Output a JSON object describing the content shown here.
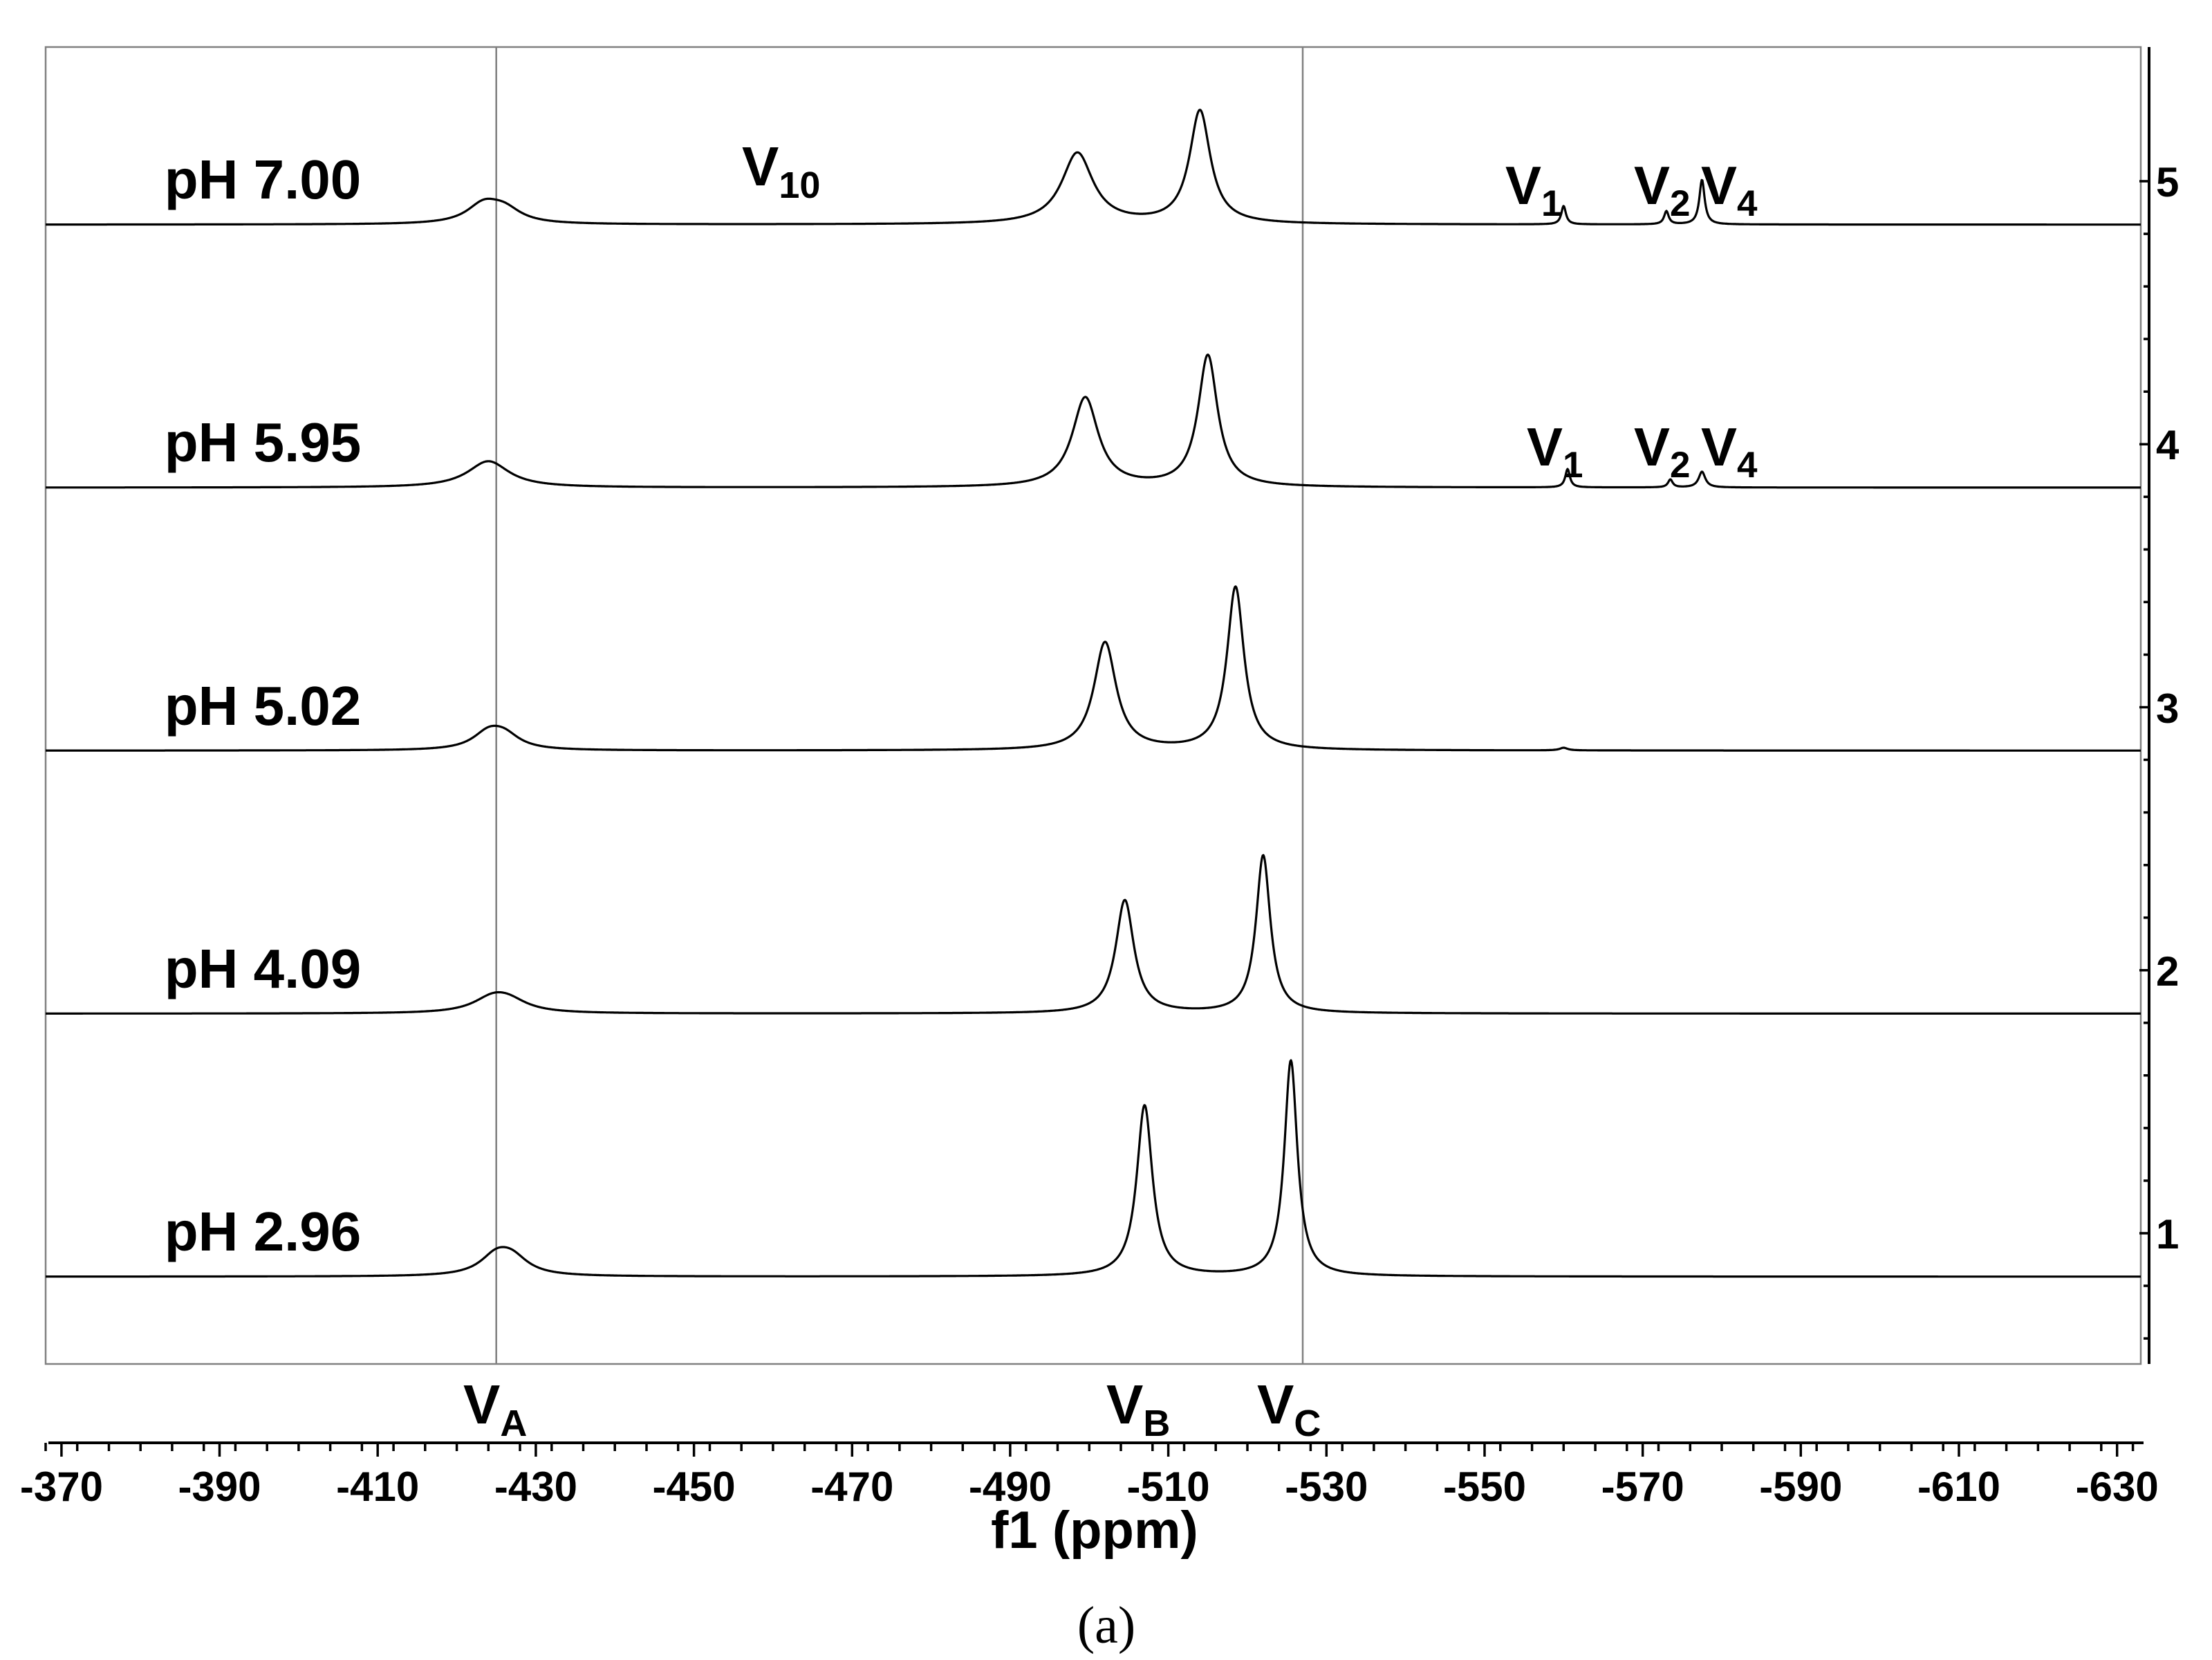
{
  "chart_data": {
    "type": "line",
    "title": "",
    "xlabel": "f1 (ppm)",
    "caption": "(a)",
    "xlim": [
      -368,
      -633
    ],
    "x_ticks": [
      "-370",
      "-390",
      "-410",
      "-430",
      "-450",
      "-470",
      "-490",
      "-510",
      "-530",
      "-550",
      "-570",
      "-590",
      "-610",
      "-630"
    ],
    "y_ticks": [
      "1",
      "2",
      "3",
      "4",
      "5"
    ],
    "reference_lines_ppm": [
      -425,
      -527
    ],
    "annotations": {
      "VA": {
        "base": "V",
        "sub": "A",
        "ppm": -425
      },
      "VB": {
        "base": "V",
        "sub": "B",
        "ppm": -507
      },
      "VC": {
        "base": "V",
        "sub": "C",
        "ppm": -527
      },
      "V10": {
        "base": "V",
        "sub": "10"
      },
      "row5": [
        {
          "base": "V",
          "sub": "1"
        },
        {
          "base": "V",
          "sub": "2"
        },
        {
          "base": "V",
          "sub": "4"
        }
      ],
      "row4": [
        {
          "base": "V",
          "sub": "1"
        },
        {
          "base": "V",
          "sub": "2"
        },
        {
          "base": "V",
          "sub": "4"
        }
      ]
    },
    "series": [
      {
        "name": "pH 7.00",
        "offset": 5,
        "peaks": [
          {
            "ppm": -423.4,
            "height": 0.07,
            "width": 2.6
          },
          {
            "ppm": -426.0,
            "height": 0.05,
            "width": 2.6
          },
          {
            "ppm": -498.5,
            "height": 0.27,
            "width": 2.4
          },
          {
            "ppm": -514.0,
            "height": 0.43,
            "width": 1.6
          },
          {
            "ppm": -560.0,
            "height": 0.07,
            "width": 0.35
          },
          {
            "ppm": -573.0,
            "height": 0.05,
            "width": 0.35
          },
          {
            "ppm": -577.5,
            "height": 0.17,
            "width": 0.4
          }
        ]
      },
      {
        "name": "pH 5.95",
        "offset": 4,
        "peaks": [
          {
            "ppm": -424.0,
            "height": 0.1,
            "width": 3.2
          },
          {
            "ppm": -499.5,
            "height": 0.34,
            "width": 2.0
          },
          {
            "ppm": -515.0,
            "height": 0.5,
            "width": 1.5
          },
          {
            "ppm": -560.5,
            "height": 0.07,
            "width": 0.35
          },
          {
            "ppm": -573.5,
            "height": 0.03,
            "width": 0.35
          },
          {
            "ppm": -577.5,
            "height": 0.06,
            "width": 0.5
          }
        ]
      },
      {
        "name": "pH 5.02",
        "offset": 3,
        "peaks": [
          {
            "ppm": -424.0,
            "height": 0.06,
            "width": 2.4
          },
          {
            "ppm": -426.0,
            "height": 0.05,
            "width": 2.4
          },
          {
            "ppm": -502.0,
            "height": 0.41,
            "width": 1.7
          },
          {
            "ppm": -518.5,
            "height": 0.62,
            "width": 1.3
          },
          {
            "ppm": -560.0,
            "height": 0.01,
            "width": 0.6
          }
        ]
      },
      {
        "name": "pH 4.09",
        "offset": 2,
        "peaks": [
          {
            "ppm": -424.5,
            "height": 0.05,
            "width": 3.0
          },
          {
            "ppm": -426.5,
            "height": 0.04,
            "width": 3.0
          },
          {
            "ppm": -504.5,
            "height": 0.43,
            "width": 1.4
          },
          {
            "ppm": -522.0,
            "height": 0.6,
            "width": 1.1
          }
        ]
      },
      {
        "name": "pH 2.96",
        "offset": 1,
        "peaks": [
          {
            "ppm": -425.0,
            "height": 0.07,
            "width": 2.5
          },
          {
            "ppm": -427.0,
            "height": 0.06,
            "width": 2.5
          },
          {
            "ppm": -507.0,
            "height": 0.65,
            "width": 1.2
          },
          {
            "ppm": -525.5,
            "height": 0.82,
            "width": 1.0
          }
        ]
      }
    ]
  }
}
